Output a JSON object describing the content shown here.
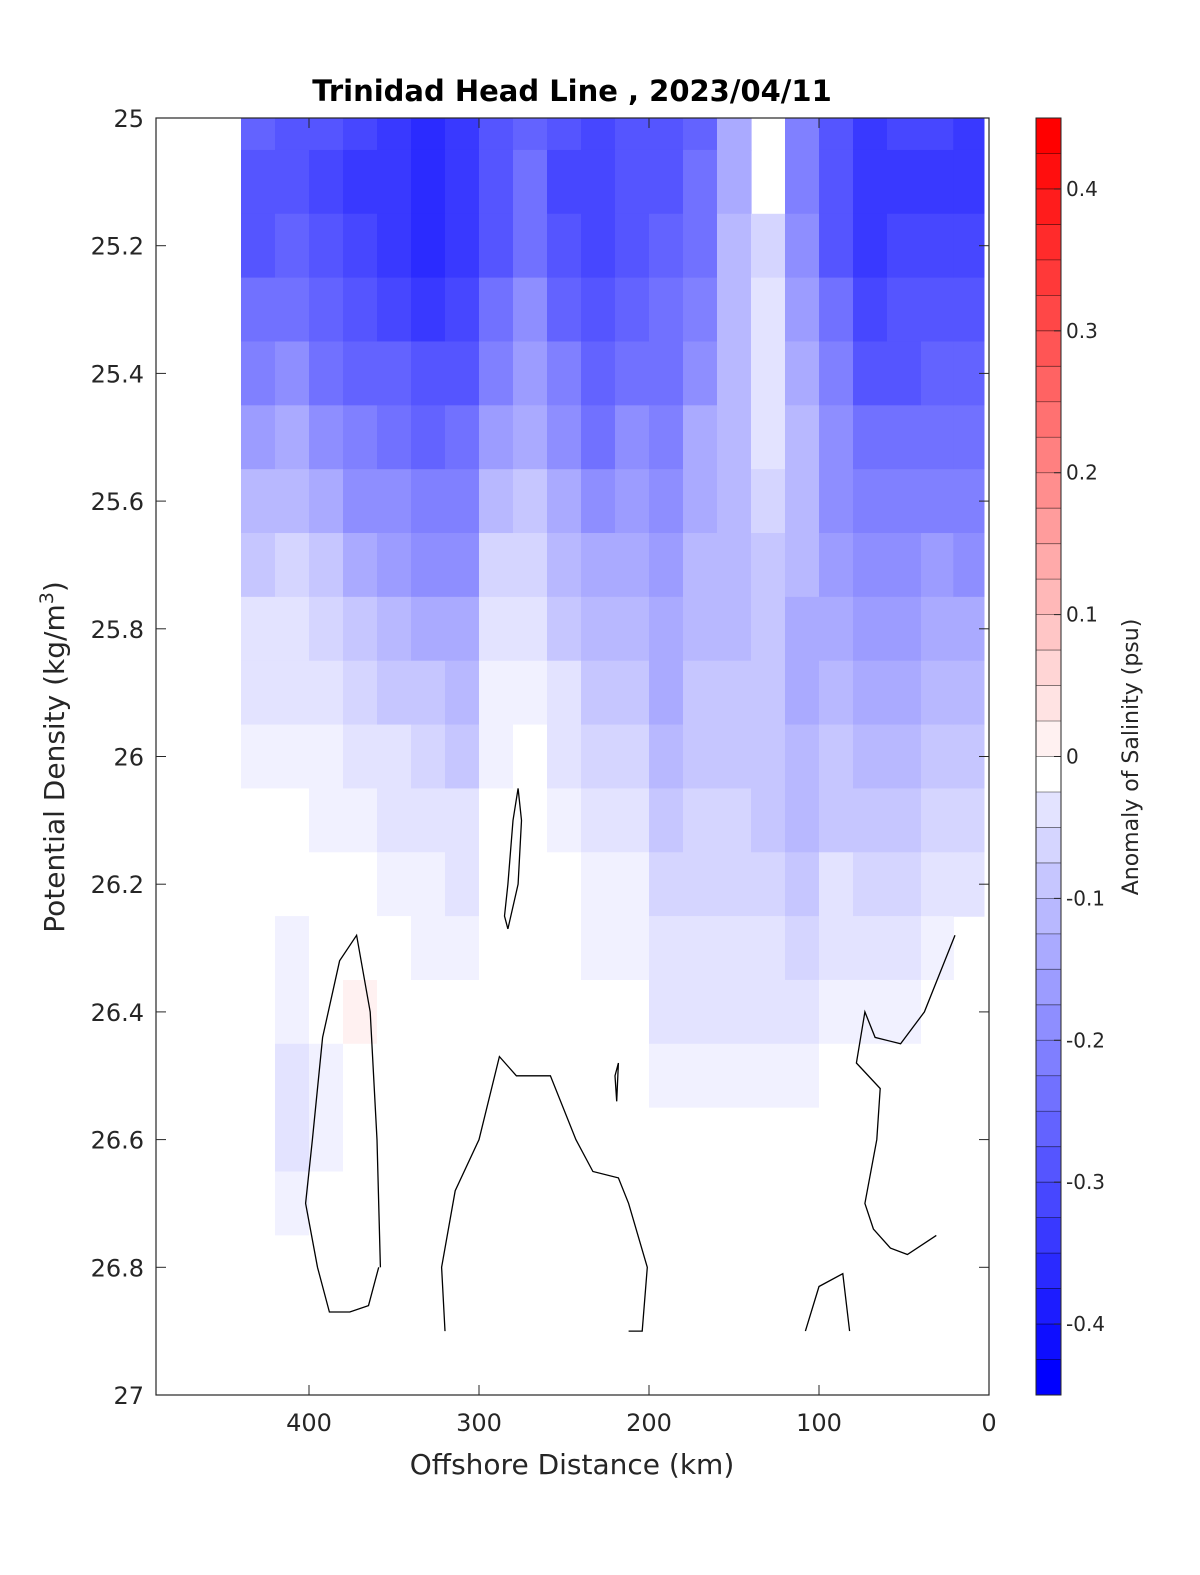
{
  "chart_data": {
    "type": "heatmap",
    "subtype": "filled-contour",
    "title": "Trinidad Head Line , 2023/04/11",
    "xlabel": "Offshore Distance (km)",
    "ylabel_main": "Potential Density (kg/m",
    "ylabel_sup": "3",
    "ylabel_close": ")",
    "colorbar_label": "Anomaly of Salinity (psu)",
    "xlim": [
      490,
      0
    ],
    "x_reversed": true,
    "ylim": [
      27,
      25
    ],
    "y_reversed": true,
    "clim": [
      -0.45,
      0.45
    ],
    "colormap": "blue-white-red",
    "color_min": "#0000ff",
    "color_zero": "#ffffff",
    "color_max": "#ff0000",
    "contour_color": "#000000",
    "x_ticks": [
      400,
      300,
      200,
      100,
      0
    ],
    "x_tick_labels": [
      "400",
      "300",
      "200",
      "100",
      "0"
    ],
    "y_ticks": [
      25,
      25.2,
      25.4,
      25.6,
      25.8,
      26,
      26.2,
      26.4,
      26.6,
      26.8,
      27
    ],
    "y_tick_labels": [
      "25",
      "25.2",
      "25.4",
      "25.6",
      "25.8",
      "26",
      "26.2",
      "26.4",
      "26.6",
      "26.8",
      "27"
    ],
    "colorbar_ticks": [
      0.4,
      0.3,
      0.2,
      0.1,
      0,
      -0.1,
      -0.2,
      -0.3,
      -0.4
    ],
    "colorbar_tick_labels": [
      "0.4",
      "0.3",
      "0.2",
      "0.1",
      "0",
      "-0.1",
      "-0.2",
      "-0.3",
      "-0.4"
    ],
    "contour_level_step": 0.025,
    "stations_km": [
      430,
      410,
      390,
      370,
      350,
      330,
      310,
      290,
      270,
      250,
      230,
      210,
      190,
      170,
      150,
      130,
      110,
      90,
      70,
      50,
      30,
      12
    ],
    "density_levels": [
      25.0,
      25.1,
      25.2,
      25.3,
      25.4,
      25.5,
      25.6,
      25.7,
      25.8,
      25.9,
      26.0,
      26.1,
      26.2,
      26.3,
      26.4,
      26.5,
      26.6,
      26.7,
      26.8,
      26.9
    ],
    "anomaly_grid": [
      [
        -0.28,
        -0.3,
        -0.29,
        -0.25,
        -0.22,
        -0.18,
        -0.13,
        -0.09,
        -0.06,
        -0.04,
        -0.02,
        -0.01,
        0.0,
        0.0,
        -0.01,
        -0.01,
        -0.01,
        -0.01,
        -0.01,
        -0.01
      ],
      [
        -0.29,
        -0.3,
        -0.28,
        -0.25,
        -0.2,
        -0.16,
        -0.12,
        -0.08,
        -0.05,
        -0.04,
        -0.02,
        -0.01,
        -0.01,
        -0.02,
        -0.03,
        -0.04,
        -0.04,
        -0.02,
        -0.01,
        -0.01
      ],
      [
        -0.31,
        -0.32,
        -0.3,
        -0.28,
        -0.24,
        -0.2,
        -0.16,
        -0.11,
        -0.08,
        -0.05,
        -0.03,
        -0.02,
        -0.01,
        -0.01,
        -0.01,
        -0.02,
        -0.02,
        -0.01,
        -0.01,
        -0.01
      ],
      [
        -0.33,
        -0.35,
        -0.33,
        -0.3,
        -0.27,
        -0.23,
        -0.19,
        -0.15,
        -0.11,
        -0.07,
        -0.04,
        -0.02,
        0.0,
        0.01,
        0.02,
        0.01,
        0.01,
        0.0,
        0.0,
        0.0
      ],
      [
        -0.34,
        -0.36,
        -0.35,
        -0.32,
        -0.28,
        -0.24,
        -0.21,
        -0.17,
        -0.13,
        -0.09,
        -0.06,
        -0.04,
        -0.02,
        -0.01,
        -0.01,
        -0.01,
        -0.01,
        -0.01,
        -0.01,
        -0.01
      ],
      [
        -0.37,
        -0.38,
        -0.37,
        -0.34,
        -0.31,
        -0.27,
        -0.23,
        -0.19,
        -0.15,
        -0.11,
        -0.08,
        -0.05,
        -0.03,
        -0.02,
        -0.01,
        -0.01,
        0.0,
        0.0,
        0.0,
        0.0
      ],
      [
        -0.34,
        -0.36,
        -0.35,
        -0.33,
        -0.3,
        -0.26,
        -0.22,
        -0.19,
        -0.16,
        -0.12,
        -0.09,
        -0.06,
        -0.04,
        -0.02,
        -0.01,
        0.0,
        0.0,
        0.0,
        0.01,
        0.01
      ],
      [
        -0.29,
        -0.3,
        -0.29,
        -0.26,
        -0.22,
        -0.17,
        -0.12,
        -0.08,
        -0.05,
        -0.03,
        -0.02,
        -0.01,
        -0.01,
        0.0,
        0.0,
        0.0,
        0.0,
        0.01,
        0.01,
        0.01
      ],
      [
        -0.27,
        -0.26,
        -0.24,
        -0.21,
        -0.18,
        -0.14,
        -0.1,
        -0.07,
        -0.04,
        -0.02,
        -0.01,
        0.0,
        0.0,
        0.0,
        0.0,
        0.0,
        0.0,
        0.01,
        0.01,
        0.01
      ],
      [
        -0.31,
        -0.32,
        -0.3,
        -0.27,
        -0.23,
        -0.19,
        -0.15,
        -0.12,
        -0.09,
        -0.06,
        -0.04,
        -0.02,
        -0.01,
        -0.01,
        0.0,
        0.0,
        0.0,
        0.0,
        0.0,
        0.0
      ],
      [
        -0.32,
        -0.33,
        -0.32,
        -0.3,
        -0.27,
        -0.24,
        -0.2,
        -0.16,
        -0.13,
        -0.1,
        -0.07,
        -0.05,
        -0.03,
        -0.02,
        -0.01,
        -0.01,
        0.0,
        0.0,
        0.0,
        0.0
      ],
      [
        -0.31,
        -0.31,
        -0.29,
        -0.27,
        -0.24,
        -0.21,
        -0.18,
        -0.15,
        -0.12,
        -0.09,
        -0.07,
        -0.05,
        -0.03,
        -0.02,
        -0.01,
        0.0,
        0.0,
        0.0,
        0.0,
        0.0
      ],
      [
        -0.29,
        -0.29,
        -0.28,
        -0.26,
        -0.24,
        -0.22,
        -0.2,
        -0.18,
        -0.16,
        -0.14,
        -0.12,
        -0.1,
        -0.08,
        -0.06,
        -0.04,
        -0.02,
        -0.01,
        0.0,
        0.0,
        0.0
      ],
      [
        -0.27,
        -0.26,
        -0.24,
        -0.22,
        -0.19,
        -0.16,
        -0.14,
        -0.13,
        -0.12,
        -0.11,
        -0.09,
        -0.08,
        -0.07,
        -0.05,
        -0.04,
        -0.03,
        -0.01,
        0.0,
        0.0,
        0.0
      ],
      [
        -0.15,
        -0.14,
        -0.13,
        -0.12,
        -0.12,
        -0.13,
        -0.13,
        -0.13,
        -0.12,
        -0.11,
        -0.1,
        -0.08,
        -0.07,
        -0.05,
        -0.04,
        -0.03,
        -0.01,
        0.0,
        0.0,
        0.0
      ],
      [
        null,
        null,
        -0.07,
        -0.06,
        -0.06,
        -0.06,
        -0.07,
        -0.09,
        -0.1,
        -0.11,
        -0.1,
        -0.09,
        -0.08,
        -0.06,
        -0.04,
        -0.02,
        -0.01,
        0.0,
        0.0,
        0.0
      ],
      [
        -0.23,
        -0.22,
        -0.2,
        -0.18,
        -0.15,
        -0.13,
        -0.12,
        -0.13,
        -0.14,
        -0.14,
        -0.13,
        -0.12,
        -0.1,
        -0.07,
        -0.04,
        -0.02,
        0.0,
        0.0,
        0.0,
        0.0
      ],
      [
        -0.31,
        -0.31,
        -0.29,
        -0.26,
        -0.23,
        -0.21,
        -0.19,
        -0.17,
        -0.15,
        -0.13,
        -0.11,
        -0.09,
        -0.06,
        -0.04,
        -0.02,
        -0.01,
        0.0,
        0.0,
        0.0,
        0.0
      ],
      [
        -0.34,
        -0.35,
        -0.34,
        -0.33,
        -0.3,
        -0.26,
        -0.23,
        -0.2,
        -0.18,
        -0.16,
        -0.13,
        -0.1,
        -0.07,
        -0.04,
        -0.02,
        -0.01,
        0.0,
        0.0,
        0.0,
        0.0
      ],
      [
        -0.32,
        -0.34,
        -0.33,
        -0.31,
        -0.29,
        -0.26,
        -0.23,
        -0.2,
        -0.17,
        -0.14,
        -0.12,
        -0.09,
        -0.07,
        -0.05,
        -0.03,
        -0.01,
        0.0,
        0.0,
        0.0,
        0.0
      ],
      [
        -0.33,
        -0.34,
        -0.33,
        -0.31,
        -0.28,
        -0.25,
        -0.22,
        -0.18,
        -0.15,
        -0.12,
        -0.09,
        -0.07,
        -0.05,
        -0.03,
        -0.01,
        0.0,
        0.0,
        0.0,
        0.0,
        0.0
      ],
      [
        -0.35,
        -0.34,
        -0.33,
        -0.31,
        -0.28,
        -0.25,
        -0.22,
        -0.19,
        -0.16,
        -0.13,
        -0.1,
        -0.08,
        -0.06,
        null,
        null,
        null,
        null,
        null,
        null,
        null
      ]
    ],
    "zero_contours": [
      {
        "x": [
          358,
          360,
          364,
          372,
          382,
          392,
          398,
          402,
          395,
          388,
          376,
          365,
          359
        ],
        "y": [
          26.8,
          26.6,
          26.4,
          26.28,
          26.32,
          26.44,
          26.6,
          26.7,
          26.8,
          26.87,
          26.87,
          26.86,
          26.8
        ]
      },
      {
        "x": [
          283,
          277,
          275,
          277,
          280,
          283,
          285,
          283
        ],
        "y": [
          26.27,
          26.2,
          26.1,
          26.05,
          26.1,
          26.2,
          26.25,
          26.27
        ]
      },
      {
        "x": [
          320,
          322,
          314,
          300,
          288,
          278,
          258,
          243,
          233,
          218,
          212,
          201,
          204,
          212
        ],
        "y": [
          26.9,
          26.8,
          26.68,
          26.6,
          26.47,
          26.5,
          26.5,
          26.6,
          26.65,
          26.66,
          26.7,
          26.8,
          26.9,
          26.9
        ]
      },
      {
        "x": [
          219,
          220,
          218,
          219
        ],
        "y": [
          26.54,
          26.5,
          26.48,
          26.54
        ]
      },
      {
        "x": [
          108,
          100,
          86,
          82
        ],
        "y": [
          26.9,
          26.83,
          26.81,
          26.9
        ]
      },
      {
        "x": [
          31,
          48,
          58,
          68,
          73,
          66,
          64,
          78,
          73,
          67,
          52,
          38,
          20
        ],
        "y": [
          26.75,
          26.78,
          26.77,
          26.74,
          26.7,
          26.6,
          26.52,
          26.48,
          26.4,
          26.44,
          26.45,
          26.4,
          26.28
        ]
      }
    ]
  }
}
